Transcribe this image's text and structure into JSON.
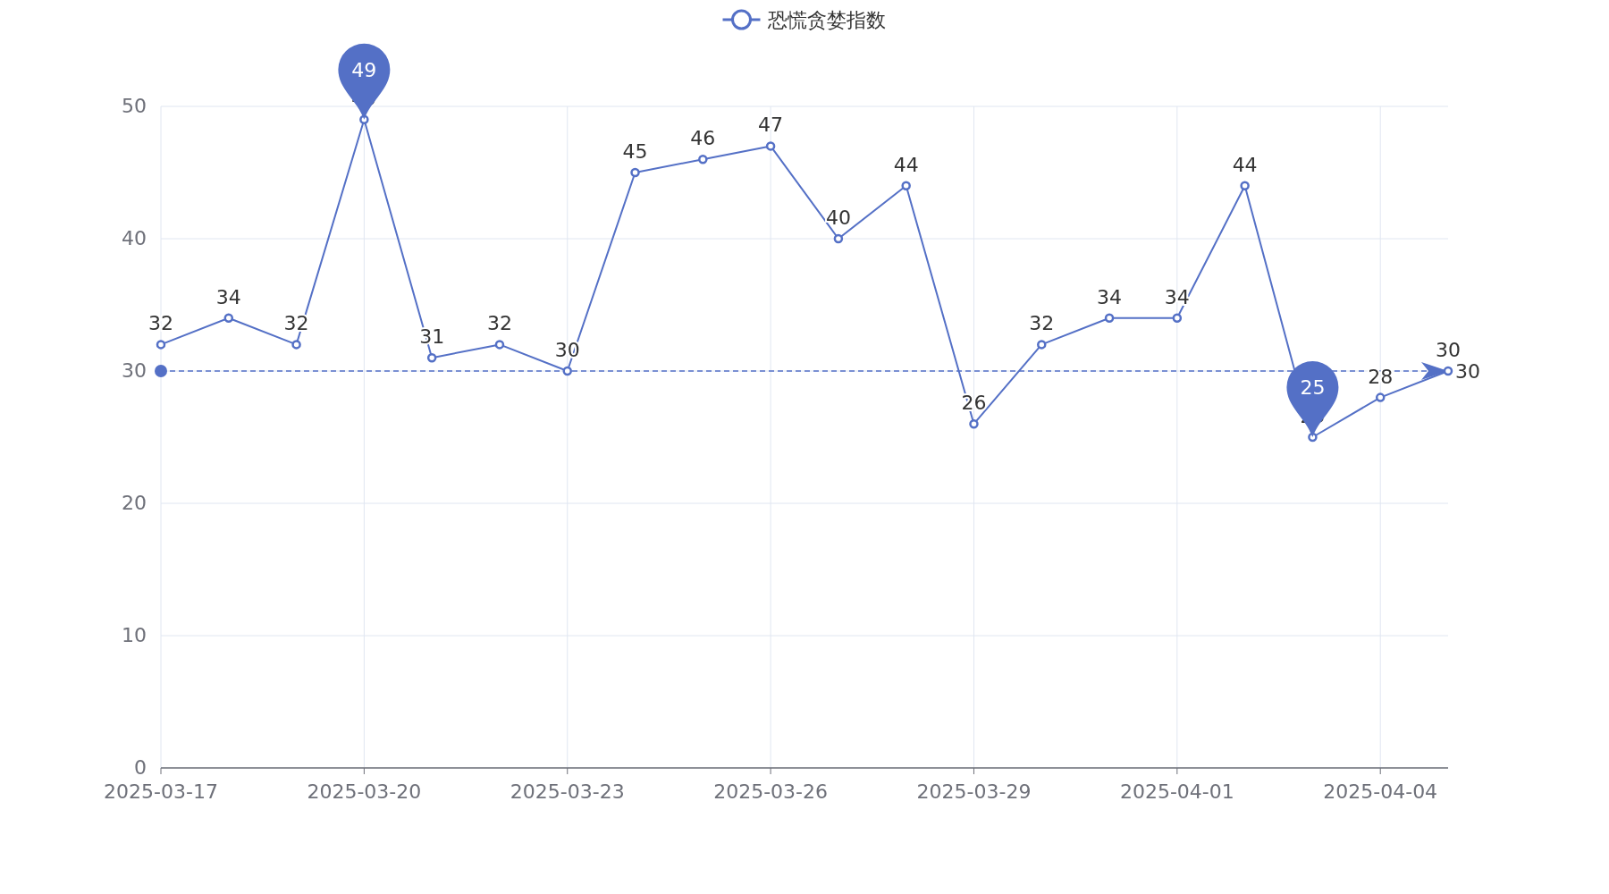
{
  "chart_data": {
    "type": "line",
    "x": [
      "2025-03-17",
      "2025-03-18",
      "2025-03-19",
      "2025-03-20",
      "2025-03-21",
      "2025-03-22",
      "2025-03-23",
      "2025-03-24",
      "2025-03-25",
      "2025-03-26",
      "2025-03-27",
      "2025-03-28",
      "2025-03-29",
      "2025-03-30",
      "2025-03-31",
      "2025-04-01",
      "2025-04-02",
      "2025-04-03",
      "2025-04-04",
      "2025-04-05"
    ],
    "series": [
      {
        "name": "恐慌贪婪指数",
        "color": "#5470c6",
        "values": [
          32,
          34,
          32,
          49,
          31,
          32,
          30,
          45,
          46,
          47,
          40,
          44,
          26,
          32,
          34,
          34,
          44,
          25,
          28,
          30
        ]
      }
    ],
    "xlim": [
      "2025-03-17",
      "2025-04-05"
    ],
    "xticks": [
      "2025-03-17",
      "2025-03-20",
      "2025-03-23",
      "2025-03-26",
      "2025-03-29",
      "2025-04-01",
      "2025-04-04"
    ],
    "ylim": [
      0,
      50
    ],
    "yticks": [
      0,
      10,
      20,
      30,
      40,
      50
    ],
    "grid": true,
    "legend": "top",
    "marker": "circle",
    "data_labels": true,
    "ref_lines": [
      {
        "axis": "y",
        "value": 30,
        "label": "30",
        "line_style": "dashed"
      }
    ],
    "annotations": [
      {
        "text": "49",
        "x": "2025-03-20",
        "y": 49
      },
      {
        "text": "25",
        "x": "2025-04-03",
        "y": 25
      }
    ]
  }
}
